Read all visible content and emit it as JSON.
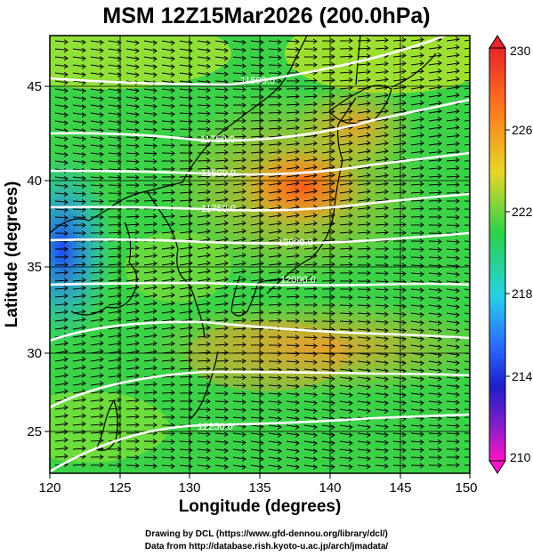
{
  "title": "MSM 12Z15Mar2026 (200.0hPa)",
  "xlabel": "Longitude (degrees)",
  "ylabel": "Latitude  (degrees)",
  "x_ticks": [
    "120",
    "125",
    "130",
    "135",
    "140",
    "145",
    "150"
  ],
  "y_ticks": [
    "25",
    "30",
    "35",
    "40",
    "45"
  ],
  "colorbar": {
    "min_label": "210",
    "max_label": "230",
    "tick_labels": [
      "230",
      "226",
      "222",
      "218",
      "214",
      "210"
    ]
  },
  "contour_labels": [
    "11500.0",
    "11750.0",
    "11500.0",
    "11750.0",
    "12000.0",
    "12000.0",
    "12250.0"
  ],
  "credits": {
    "line1": "Drawing by DCL (https://www.gfd-dennou.org/library/dcl/)",
    "line2": "Data from http://database.rish.kyoto-u.ac.jp/arch/jmadata/"
  },
  "colors": {
    "cold": "#1e3cff",
    "cool": "#28d0e6",
    "mid": "#2ad24a",
    "warm_low": "#c8e628",
    "warm": "#f2a030",
    "hot": "#ff5a1e",
    "contour": "#ffffff",
    "arrows": "#000000"
  }
}
